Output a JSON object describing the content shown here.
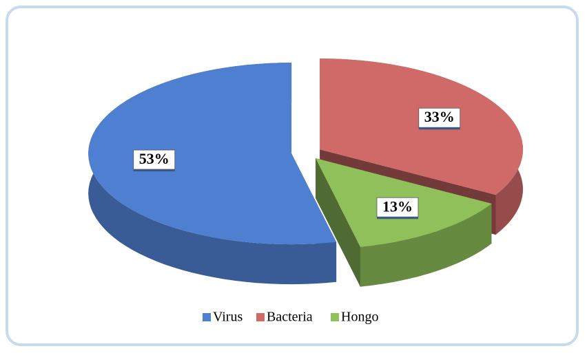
{
  "chart_data": {
    "type": "pie",
    "categories": [
      "Virus",
      "Bacteria",
      "Hongo"
    ],
    "values": [
      53,
      33,
      13
    ],
    "value_labels": [
      "53%",
      "33%",
      "13%"
    ],
    "colors": [
      "#4f7fd0",
      "#d06a68",
      "#8fc05a"
    ],
    "legend": "bottom"
  }
}
